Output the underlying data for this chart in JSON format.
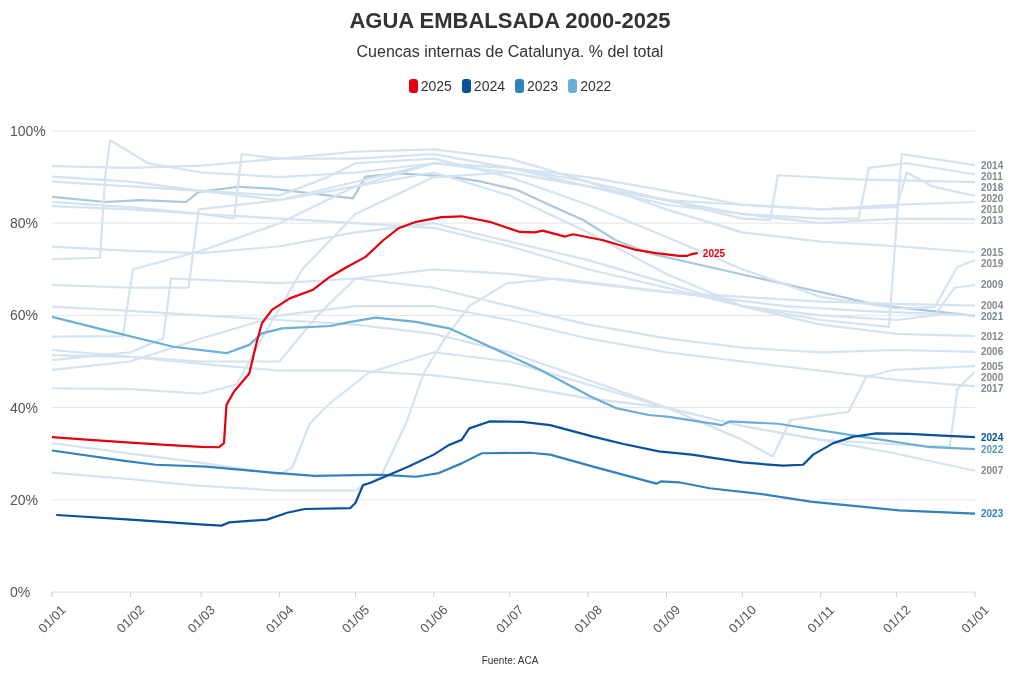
{
  "chart_data": {
    "type": "line",
    "title": "AGUA EMBALSADA 2000-2025",
    "subtitle": "Cuencas internas de Catalunya. % del total",
    "xlim": [
      "2025-01-01",
      "2026-01-01"
    ],
    "xticks": [
      {
        "value": "2025-01-01",
        "label": "01/01"
      },
      {
        "value": "2025-02-01",
        "label": "01/02"
      },
      {
        "value": "2025-03-01",
        "label": "01/03"
      },
      {
        "value": "2025-04-01",
        "label": "01/04"
      },
      {
        "value": "2025-05-01",
        "label": "01/05"
      },
      {
        "value": "2025-06-01",
        "label": "01/06"
      },
      {
        "value": "2025-07-01",
        "label": "01/07"
      },
      {
        "value": "2025-08-01",
        "label": "01/08"
      },
      {
        "value": "2025-09-01",
        "label": "01/09"
      },
      {
        "value": "2025-10-01",
        "label": "01/10"
      },
      {
        "value": "2025-11-01",
        "label": "01/11"
      },
      {
        "value": "2025-12-01",
        "label": "01/12"
      },
      {
        "value": "2026-01-01",
        "label": "01/01"
      }
    ],
    "ylim": [
      0,
      100
    ],
    "yticks": [
      {
        "value": 0,
        "label": "0%"
      },
      {
        "value": 20,
        "label": "20%"
      },
      {
        "value": 40,
        "label": "40%"
      },
      {
        "value": 60,
        "label": "60%"
      },
      {
        "value": 80,
        "label": "80%"
      },
      {
        "value": 100,
        "label": "100%"
      }
    ],
    "grid": "y",
    "legend": "top",
    "annotations": [
      "Fuente: ACA"
    ],
    "series": [
      {
        "name": "2025",
        "color": "#e3000f",
        "x": [
          "2025-01-01",
          "2025-01-16",
          "2025-02-01",
          "2025-02-15",
          "2025-03-01",
          "2025-03-08",
          "2025-03-10",
          "2025-03-11",
          "2025-03-14",
          "2025-03-20",
          "2025-03-23",
          "2025-03-25",
          "2025-03-29",
          "2025-04-05",
          "2025-04-14",
          "2025-04-21",
          "2025-04-28",
          "2025-05-05",
          "2025-05-12",
          "2025-05-18",
          "2025-05-25",
          "2025-06-04",
          "2025-06-12",
          "2025-06-23",
          "2025-07-05",
          "2025-07-11",
          "2025-07-14",
          "2025-07-23",
          "2025-07-26",
          "2025-08-07",
          "2025-08-20",
          "2025-08-28",
          "2025-09-06",
          "2025-09-09",
          "2025-09-11",
          "2025-09-13"
        ],
        "values": [
          33.6,
          33.0,
          32.4,
          31.9,
          31.5,
          31.4,
          32.3,
          40.6,
          43.5,
          47.4,
          54.3,
          58.3,
          61.2,
          63.7,
          65.5,
          68.4,
          70.6,
          72.7,
          76.3,
          78.9,
          80.3,
          81.3,
          81.5,
          80.3,
          78.1,
          78.0,
          78.4,
          77.1,
          77.6,
          76.3,
          74.2,
          73.5,
          72.9,
          72.9,
          73.3,
          73.5
        ]
      },
      {
        "name": "2024",
        "color": "#08519c",
        "x": [
          "2025-01-03",
          "2025-02-01",
          "2025-03-02",
          "2025-03-09",
          "2025-03-12",
          "2025-03-27",
          "2025-04-04",
          "2025-04-11",
          "2025-04-29",
          "2025-05-01",
          "2025-05-04",
          "2025-05-07",
          "2025-05-22",
          "2025-06-01",
          "2025-06-07",
          "2025-06-12",
          "2025-06-15",
          "2025-06-23",
          "2025-07-06",
          "2025-07-17",
          "2025-08-03",
          "2025-08-15",
          "2025-08-29",
          "2025-09-11",
          "2025-10-01",
          "2025-10-17",
          "2025-10-25",
          "2025-10-29",
          "2025-11-06",
          "2025-11-14",
          "2025-11-23",
          "2025-12-06",
          "2025-12-19",
          "2026-01-01"
        ],
        "values": [
          16.7,
          15.7,
          14.6,
          14.4,
          15.1,
          15.7,
          17.2,
          18.0,
          18.2,
          19.3,
          23.2,
          23.7,
          27.2,
          29.8,
          31.9,
          33.0,
          35.5,
          37.0,
          36.9,
          36.2,
          33.7,
          32.1,
          30.5,
          29.8,
          28.1,
          27.4,
          27.6,
          29.8,
          32.3,
          33.7,
          34.4,
          34.3,
          33.9,
          33.6
        ]
      },
      {
        "name": "2023",
        "color": "#3182bd",
        "x": [
          "2025-01-01",
          "2025-01-29",
          "2025-02-11",
          "2025-03-03",
          "2025-03-29",
          "2025-04-15",
          "2025-05-07",
          "2025-05-12",
          "2025-05-25",
          "2025-06-03",
          "2025-06-12",
          "2025-06-20",
          "2025-07-09",
          "2025-07-17",
          "2025-08-03",
          "2025-08-28",
          "2025-08-30",
          "2025-09-06",
          "2025-09-18",
          "2025-10-08",
          "2025-10-28",
          "2025-12-02",
          "2026-01-01"
        ],
        "values": [
          30.7,
          28.5,
          27.6,
          27.2,
          25.9,
          25.2,
          25.4,
          25.4,
          25.0,
          25.8,
          27.9,
          30.1,
          30.2,
          29.8,
          27.2,
          23.5,
          24.0,
          23.8,
          22.5,
          21.3,
          19.6,
          17.7,
          17.0
        ]
      },
      {
        "name": "2022",
        "color": "#6baed6",
        "x": [
          "2025-01-01",
          "2025-01-22",
          "2025-02-18",
          "2025-03-11",
          "2025-03-20",
          "2025-03-25",
          "2025-04-02",
          "2025-04-21",
          "2025-04-29",
          "2025-05-09",
          "2025-05-25",
          "2025-06-07",
          "2025-06-20",
          "2025-07-13",
          "2025-08-02",
          "2025-08-12",
          "2025-08-25",
          "2025-09-02",
          "2025-09-23",
          "2025-09-26",
          "2025-10-15",
          "2025-11-17",
          "2025-12-13",
          "2026-01-01"
        ],
        "values": [
          59.7,
          56.8,
          53.2,
          51.8,
          53.6,
          56.1,
          57.2,
          57.7,
          58.6,
          59.5,
          58.6,
          57.2,
          54.0,
          48.2,
          42.4,
          39.9,
          38.4,
          38.0,
          36.2,
          37.0,
          36.5,
          33.7,
          31.5,
          31.0
        ]
      },
      {
        "name": "2020",
        "color": "#d4e3f1",
        "x": [
          "2025-01-01",
          "2025-01-20",
          "2025-01-22",
          "2025-01-24",
          "2025-02-08",
          "2025-03-01",
          "2025-04-01",
          "2025-05-01",
          "2025-06-01",
          "2025-07-01",
          "2025-08-01",
          "2025-09-01",
          "2025-10-01",
          "2025-11-01",
          "2025-12-01",
          "2025-12-05",
          "2025-12-15",
          "2026-01-01"
        ],
        "values": [
          72.2,
          72.5,
          90,
          98,
          93,
          91,
          90,
          91,
          93,
          92,
          90,
          87,
          84,
          83,
          83.5,
          91,
          88,
          85.9
        ]
      },
      {
        "name": "2019",
        "color": "#d4e3f1",
        "x": [
          "2025-01-01",
          "2025-02-01",
          "2025-03-01",
          "2025-04-01",
          "2025-04-20",
          "2025-05-01",
          "2025-06-01",
          "2025-07-01",
          "2025-08-01",
          "2025-09-01",
          "2025-10-01",
          "2025-11-01",
          "2025-12-01",
          "2025-12-16",
          "2025-12-25",
          "2026-01-01"
        ],
        "values": [
          89,
          88,
          87,
          86,
          90,
          93,
          94,
          90,
          84,
          77,
          70,
          64,
          61.5,
          61.8,
          70.5,
          72
        ]
      },
      {
        "name": "2018",
        "color": "#d4e3f1",
        "x": [
          "2025-01-01",
          "2025-02-01",
          "2025-03-01",
          "2025-03-15",
          "2025-03-25",
          "2025-04-10",
          "2025-05-01",
          "2025-06-01",
          "2025-07-01",
          "2025-08-01",
          "2025-09-01",
          "2025-10-01",
          "2025-10-12",
          "2025-10-15",
          "2025-11-15",
          "2026-01-01"
        ],
        "values": [
          44.2,
          44,
          43,
          45,
          55,
          70,
          82,
          90,
          91,
          88,
          85,
          81,
          80.7,
          90.4,
          89.5,
          88.9
        ]
      },
      {
        "name": "2017",
        "color": "#d4e3f1",
        "x": [
          "2025-01-01",
          "2025-02-01",
          "2025-03-01",
          "2025-04-01",
          "2025-05-01",
          "2025-06-01",
          "2025-07-01",
          "2025-08-01",
          "2025-09-01",
          "2025-10-01",
          "2025-11-01",
          "2025-12-01",
          "2026-01-01"
        ],
        "values": [
          48.2,
          50,
          55,
          60,
          62,
          62,
          59,
          55,
          52,
          50,
          48,
          46,
          44.6
        ]
      },
      {
        "name": "2015",
        "color": "#d4e3f1",
        "x": [
          "2025-01-01",
          "2025-02-01",
          "2025-03-01",
          "2025-04-01",
          "2025-05-01",
          "2025-06-01",
          "2025-07-01",
          "2025-08-01",
          "2025-09-01",
          "2025-10-01",
          "2025-11-01",
          "2025-12-01",
          "2026-01-01"
        ],
        "values": [
          92.4,
          92,
          92.5,
          94,
          95.5,
          96,
          94,
          89,
          83,
          78,
          76,
          75,
          73.7
        ]
      },
      {
        "name": "2014",
        "color": "#d4e3f1",
        "x": [
          "2025-01-01",
          "2025-02-01",
          "2025-03-01",
          "2025-04-01",
          "2025-05-01",
          "2025-06-01",
          "2025-07-01",
          "2025-08-01",
          "2025-09-01",
          "2025-10-01",
          "2025-11-01",
          "2025-11-28",
          "2025-12-01",
          "2025-12-03",
          "2025-12-15",
          "2026-01-01"
        ],
        "values": [
          83.7,
          83,
          82,
          81,
          80,
          79,
          75,
          70,
          66,
          62,
          59,
          57.5,
          80,
          95,
          94,
          92.6
        ]
      },
      {
        "name": "2013",
        "color": "#d4e3f1",
        "x": [
          "2025-01-01",
          "2025-01-29",
          "2025-02-02",
          "2025-03-01",
          "2025-04-01",
          "2025-05-01",
          "2025-06-01",
          "2025-07-01",
          "2025-08-01",
          "2025-09-01",
          "2025-10-01",
          "2025-11-01",
          "2025-12-01",
          "2026-01-01"
        ],
        "values": [
          55.4,
          55.5,
          70,
          74,
          80,
          88,
          93,
          92,
          89,
          85,
          82,
          80,
          81,
          80.9
        ]
      },
      {
        "name": "2012",
        "color": "#d4e3f1",
        "x": [
          "2025-01-01",
          "2025-02-01",
          "2025-03-01",
          "2025-04-01",
          "2025-05-01",
          "2025-06-01",
          "2025-07-01",
          "2025-08-01",
          "2025-09-01",
          "2025-10-01",
          "2025-11-01",
          "2025-12-01",
          "2026-01-01"
        ],
        "values": [
          90.1,
          89,
          87,
          85,
          88,
          91,
          86,
          78,
          69,
          62,
          58,
          56,
          55.5
        ]
      },
      {
        "name": "2011",
        "color": "#d4e3f1",
        "x": [
          "2025-01-01",
          "2025-02-01",
          "2025-03-01",
          "2025-03-14",
          "2025-03-17",
          "2025-04-01",
          "2025-05-01",
          "2025-06-01",
          "2025-07-01",
          "2025-08-01",
          "2025-09-01",
          "2025-10-01",
          "2025-11-01",
          "2025-11-16",
          "2025-11-20",
          "2025-12-05",
          "2026-01-01"
        ],
        "values": [
          84.6,
          83.5,
          82,
          81,
          95,
          94,
          94,
          95,
          92,
          88,
          84,
          82,
          81,
          81,
          92,
          93,
          90.6
        ]
      },
      {
        "name": "2010",
        "color": "#d4e3f1",
        "x": [
          "2025-01-01",
          "2025-02-01",
          "2025-02-24",
          "2025-02-28",
          "2025-04-01",
          "2025-05-01",
          "2025-06-01",
          "2025-07-01",
          "2025-08-01",
          "2025-09-01",
          "2025-10-01",
          "2025-11-01",
          "2025-12-01",
          "2026-01-01"
        ],
        "values": [
          66.6,
          66,
          66,
          83,
          85,
          89,
          93,
          91,
          88,
          85,
          84,
          83,
          84,
          84.6
        ]
      },
      {
        "name": "2009",
        "color": "#d4e3f1",
        "x": [
          "2025-01-01",
          "2025-02-01",
          "2025-03-01",
          "2025-04-01",
          "2025-05-01",
          "2025-06-01",
          "2025-07-01",
          "2025-08-01",
          "2025-09-01",
          "2025-10-01",
          "2025-11-01",
          "2025-12-01",
          "2025-12-16",
          "2025-12-24",
          "2026-01-01"
        ],
        "values": [
          74.9,
          74,
          73.5,
          75,
          78,
          80,
          76,
          72,
          67,
          62,
          60,
          59,
          60,
          66,
          66.6
        ]
      },
      {
        "color": "#d4e3f1",
        "x": [
          "2025-01-01",
          "2025-02-01",
          "2025-03-01",
          "2025-04-01",
          "2025-05-01",
          "2025-05-11",
          "2025-05-21",
          "2025-05-28",
          "2025-06-05",
          "2025-06-15",
          "2025-06-30",
          "2025-07-20",
          "2025-08-19",
          "2025-09-18",
          "2025-10-18",
          "2025-11-17",
          "2026-01-01"
        ],
        "values": [
          25.9,
          24.5,
          23,
          22,
          22,
          25,
          36.6,
          47.5,
          54.7,
          62,
          67,
          68,
          66,
          64,
          62,
          61,
          60
        ]
      },
      {
        "name": "2007",
        "color": "#d4e3f1",
        "x": [
          "2025-01-01",
          "2025-02-01",
          "2025-03-01",
          "2025-04-01",
          "2025-05-01",
          "2025-06-01",
          "2025-07-01",
          "2025-08-01",
          "2025-09-01",
          "2025-10-01",
          "2025-11-01",
          "2025-12-01",
          "2026-01-01"
        ],
        "values": [
          52.5,
          51,
          49.5,
          48,
          48,
          47,
          45,
          42,
          40,
          36,
          33,
          30,
          26.3
        ]
      },
      {
        "name": "2006",
        "color": "#d4e3f1",
        "x": [
          "2025-01-01",
          "2025-02-01",
          "2025-02-14",
          "2025-02-17",
          "2025-04-01",
          "2025-05-01",
          "2025-06-01",
          "2025-07-01",
          "2025-08-01",
          "2025-09-01",
          "2025-10-01",
          "2025-11-01",
          "2025-12-01",
          "2026-01-01"
        ],
        "values": [
          50.3,
          52,
          55,
          68,
          67,
          68,
          66,
          62,
          58,
          55,
          53,
          52,
          52.5,
          52.1
        ]
      },
      {
        "name": "2005",
        "color": "#d4e3f1",
        "x": [
          "2025-01-01",
          "2025-02-01",
          "2025-03-01",
          "2025-04-01",
          "2025-05-01",
          "2025-06-01",
          "2025-07-01",
          "2025-08-01",
          "2025-09-01",
          "2025-10-01",
          "2025-10-13",
          "2025-10-20",
          "2025-11-12",
          "2025-11-19",
          "2025-11-30",
          "2026-01-01"
        ],
        "values": [
          61.9,
          61,
          60,
          59,
          58,
          56,
          52,
          46,
          40,
          33,
          29.4,
          37.3,
          39.1,
          46.7,
          48.2,
          49.0
        ]
      },
      {
        "name": "2004",
        "color": "#d4e3f1",
        "x": [
          "2025-01-01",
          "2025-02-01",
          "2025-03-01",
          "2025-04-01",
          "2025-04-16",
          "2025-05-01",
          "2025-06-01",
          "2025-07-01",
          "2025-08-01",
          "2025-09-01",
          "2025-10-01",
          "2025-11-01",
          "2025-12-01",
          "2026-01-01"
        ],
        "values": [
          51.4,
          51,
          50,
          50,
          60,
          68,
          70,
          69,
          67,
          65,
          64,
          63,
          62.5,
          62.1
        ]
      },
      {
        "name": "2000",
        "color": "#d4e3f1",
        "x": [
          "2025-01-01",
          "2025-02-01",
          "2025-03-01",
          "2025-04-01",
          "2025-04-06",
          "2025-04-13",
          "2025-04-21",
          "2025-05-06",
          "2025-06-01",
          "2025-07-01",
          "2025-08-01",
          "2025-09-01",
          "2025-10-01",
          "2025-11-01",
          "2025-12-01",
          "2025-12-22",
          "2025-12-25",
          "2026-01-01"
        ],
        "values": [
          32.3,
          30,
          28,
          25.5,
          27,
          36.6,
          41,
          47.5,
          52,
          50,
          45,
          40,
          36,
          33,
          32,
          31.5,
          44,
          47.8
        ]
      },
      {
        "name": "2021",
        "color": "#aac7dd",
        "x": [
          "2025-01-01",
          "2025-01-22",
          "2025-02-05",
          "2025-02-23",
          "2025-02-28",
          "2025-03-16",
          "2025-03-29",
          "2025-04-25",
          "2025-04-30",
          "2025-05-05",
          "2025-05-18",
          "2025-06-07",
          "2025-06-20",
          "2025-07-04",
          "2025-07-17",
          "2025-07-30",
          "2025-08-12",
          "2025-08-25",
          "2025-09-06",
          "2025-09-18",
          "2025-10-08",
          "2025-11-03",
          "2025-11-23",
          "2026-01-01"
        ],
        "values": [
          85.7,
          84.6,
          85.0,
          84.6,
          86.8,
          87.9,
          87.5,
          85.7,
          85.4,
          90.1,
          90.8,
          90.1,
          89.0,
          87.2,
          83.9,
          80.7,
          76.3,
          73.5,
          72.0,
          70.5,
          68.0,
          64.8,
          62.3,
          59.9
        ]
      }
    ]
  }
}
